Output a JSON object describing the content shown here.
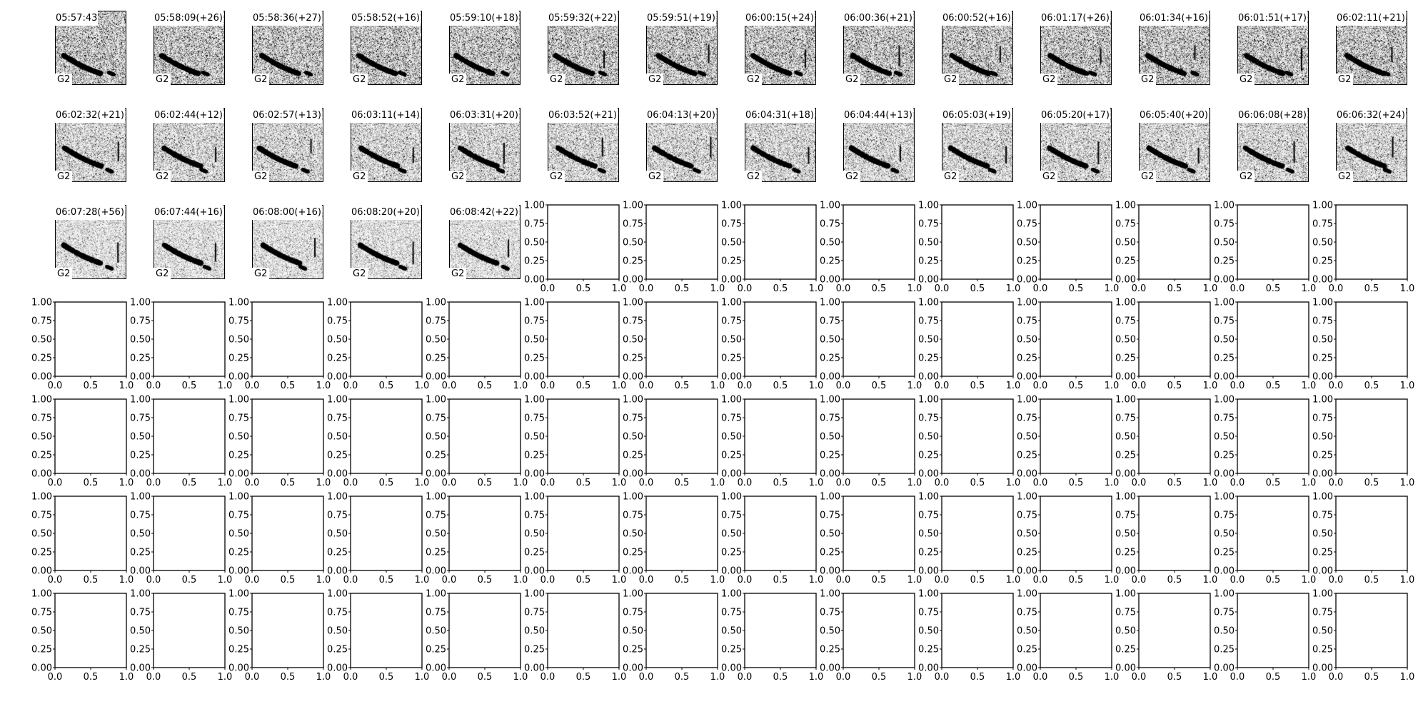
{
  "figure": {
    "background": "#ffffff",
    "spine_color": "#000000",
    "colormap": "gray_r"
  },
  "chart_data": {
    "type": "heatmap",
    "description_kind": "spectrogram grid",
    "panels": [
      {
        "title": "05:57:43",
        "label": "G2"
      },
      {
        "title": "05:58:09(+26)",
        "label": "G2"
      },
      {
        "title": "05:58:36(+27)",
        "label": "G2"
      },
      {
        "title": "05:58:52(+16)",
        "label": "G2"
      },
      {
        "title": "05:59:10(+18)",
        "label": "G2"
      },
      {
        "title": "05:59:32(+22)",
        "label": "G2"
      },
      {
        "title": "05:59:51(+19)",
        "label": "G2"
      },
      {
        "title": "06:00:15(+24)",
        "label": "G2"
      },
      {
        "title": "06:00:36(+21)",
        "label": "G2"
      },
      {
        "title": "06:00:52(+16)",
        "label": "G2"
      },
      {
        "title": "06:01:17(+26)",
        "label": "G2"
      },
      {
        "title": "06:01:34(+16)",
        "label": "G2"
      },
      {
        "title": "06:01:51(+17)",
        "label": "G2"
      },
      {
        "title": "06:02:11(+21)",
        "label": "G2"
      },
      {
        "title": "06:02:32(+21)",
        "label": "G2"
      },
      {
        "title": "06:02:44(+12)",
        "label": "G2"
      },
      {
        "title": "06:02:57(+13)",
        "label": "G2"
      },
      {
        "title": "06:03:11(+14)",
        "label": "G2"
      },
      {
        "title": "06:03:31(+20)",
        "label": "G2"
      },
      {
        "title": "06:03:52(+21)",
        "label": "G2"
      },
      {
        "title": "06:04:13(+20)",
        "label": "G2"
      },
      {
        "title": "06:04:31(+18)",
        "label": "G2"
      },
      {
        "title": "06:04:44(+13)",
        "label": "G2"
      },
      {
        "title": "06:05:03(+19)",
        "label": "G2"
      },
      {
        "title": "06:05:20(+17)",
        "label": "G2"
      },
      {
        "title": "06:05:40(+20)",
        "label": "G2"
      },
      {
        "title": "06:06:08(+28)",
        "label": "G2"
      },
      {
        "title": "06:06:32(+24)",
        "label": "G2"
      },
      {
        "title": "06:07:28(+56)",
        "label": "G2"
      },
      {
        "title": "06:07:44(+16)",
        "label": "G2"
      },
      {
        "title": "06:08:00(+16)",
        "label": "G2"
      },
      {
        "title": "06:08:20(+20)",
        "label": "G2"
      },
      {
        "title": "06:08:42(+22)",
        "label": "G2"
      }
    ],
    "grid": {
      "rows": 7,
      "cols": 14
    },
    "empty_axes": {
      "count": 65,
      "xlim": [
        0,
        1
      ],
      "ylim": [
        0,
        1
      ],
      "xticks": [
        "0.0",
        "0.5",
        "1.0"
      ],
      "yticks": [
        "0.00",
        "0.25",
        "0.50",
        "0.75",
        "1.00"
      ]
    }
  }
}
